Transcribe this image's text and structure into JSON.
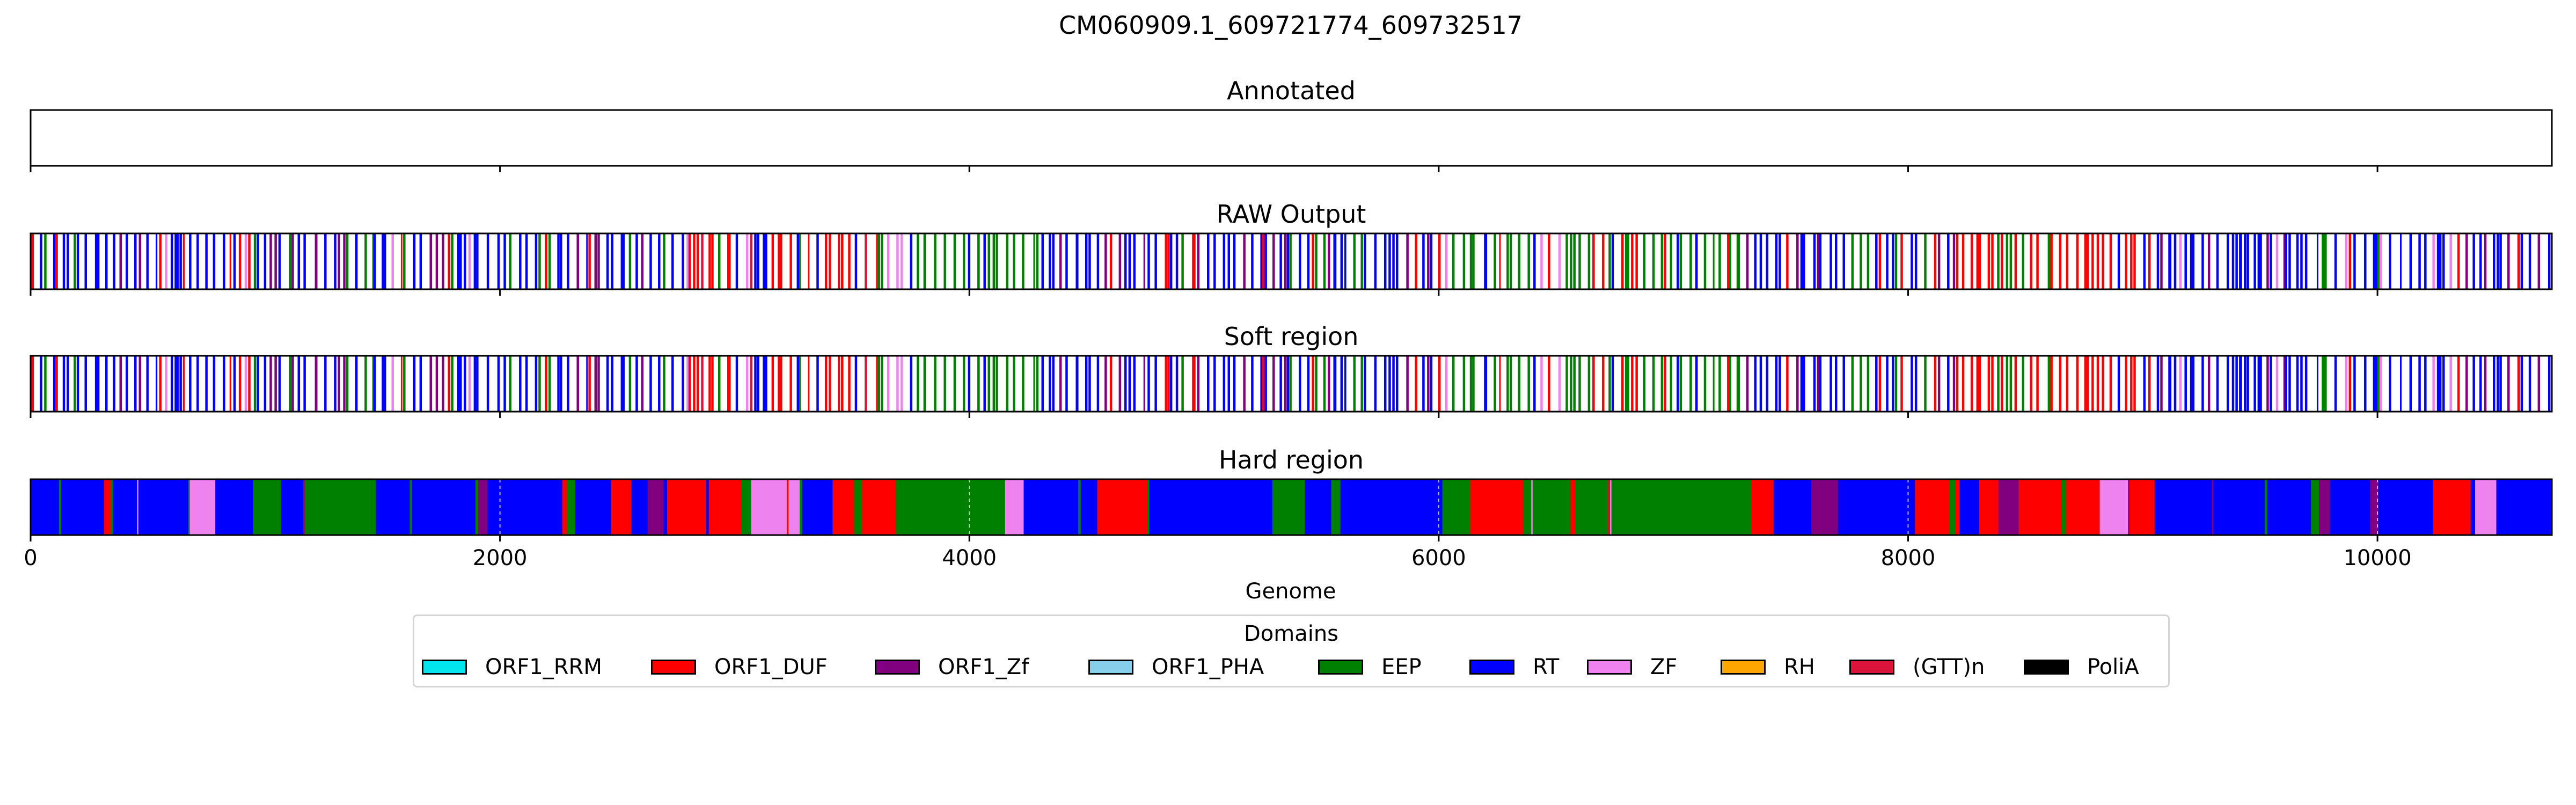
{
  "chart_data": {
    "type": "genome-track",
    "title": "CM060909.1_609721774_609732517",
    "xlabel": "Genome",
    "xlim": [
      0,
      10743
    ],
    "xticks": [
      0,
      2000,
      4000,
      6000,
      8000,
      10000
    ],
    "tracks": [
      {
        "name": "Annotated",
        "mode": "empty",
        "fill": false,
        "dashed_ticks": false
      },
      {
        "name": "RAW Output",
        "mode": "sparse",
        "fill": false,
        "dashed_ticks": false
      },
      {
        "name": "Soft region",
        "mode": "sparse",
        "fill": false,
        "dashed_ticks": false
      },
      {
        "name": "Hard region",
        "mode": "dense",
        "fill": true,
        "dashed_ticks": true
      }
    ],
    "legend": {
      "title": "Domains",
      "placement": "bottom-center",
      "items": [
        {
          "label": "ORF1_RRM",
          "color": "#00e5ee"
        },
        {
          "label": "ORF1_DUF",
          "color": "#ff0000"
        },
        {
          "label": "ORF1_Zf",
          "color": "#800080"
        },
        {
          "label": "ORF1_PHA",
          "color": "#87ceeb"
        },
        {
          "label": "EEP",
          "color": "#008000"
        },
        {
          "label": "RT",
          "color": "#0000ff"
        },
        {
          "label": "ZF",
          "color": "#ee82ee"
        },
        {
          "label": "RH",
          "color": "#ffa500"
        },
        {
          "label": "(GTT)n",
          "color": "#dc143c"
        },
        {
          "label": "PoliA",
          "color": "#000000"
        }
      ]
    },
    "regions": [
      {
        "start": 0,
        "end": 1600,
        "dominant": "RT",
        "mix": [
          "EEP",
          "ORF1_DUF",
          "ORF1_Zf",
          "ZF"
        ]
      },
      {
        "start": 1600,
        "end": 2800,
        "dominant": "RT",
        "mix": [
          "ORF1_DUF",
          "ORF1_Zf",
          "EEP",
          "ZF"
        ]
      },
      {
        "start": 2800,
        "end": 3600,
        "dominant": "ORF1_DUF",
        "mix": [
          "RT",
          "EEP",
          "ZF",
          "(GTT)n"
        ]
      },
      {
        "start": 3600,
        "end": 4300,
        "dominant": "EEP",
        "mix": [
          "RT",
          "ORF1_DUF",
          "ZF"
        ]
      },
      {
        "start": 4300,
        "end": 6000,
        "dominant": "RT",
        "mix": [
          "EEP",
          "ORF1_Zf",
          "ORF1_DUF"
        ]
      },
      {
        "start": 6000,
        "end": 7200,
        "dominant": "EEP",
        "mix": [
          "RT",
          "ORF1_DUF",
          "ZF"
        ]
      },
      {
        "start": 7200,
        "end": 8200,
        "dominant": "RT",
        "mix": [
          "ORF1_DUF",
          "EEP",
          "ORF1_Zf"
        ]
      },
      {
        "start": 8200,
        "end": 9000,
        "dominant": "ORF1_DUF",
        "mix": [
          "EEP",
          "RT",
          "ZF",
          "ORF1_Zf"
        ]
      },
      {
        "start": 9000,
        "end": 10743,
        "dominant": "RT",
        "mix": [
          "ORF1_DUF",
          "EEP",
          "ORF1_Zf",
          "ZF"
        ]
      }
    ]
  }
}
